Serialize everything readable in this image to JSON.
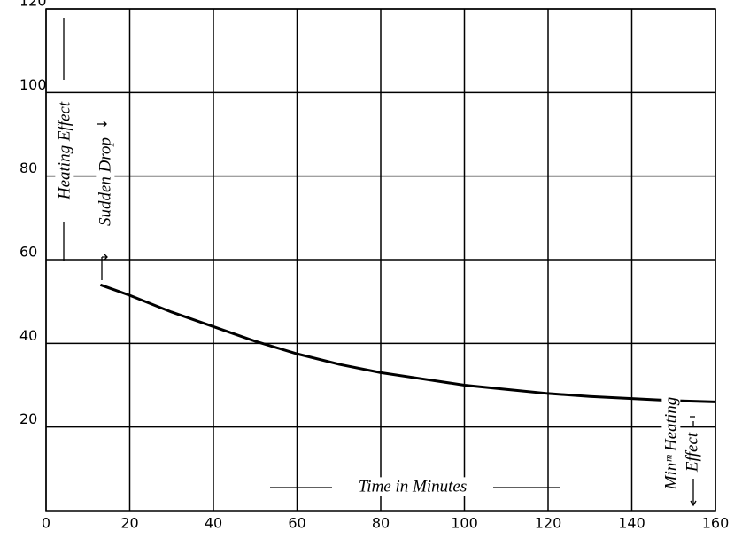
{
  "chart_data": {
    "type": "line",
    "x": [
      13,
      20,
      30,
      40,
      50,
      60,
      70,
      80,
      90,
      100,
      110,
      120,
      130,
      140,
      150,
      160
    ],
    "series": [
      {
        "color": "#000000",
        "values": [
          54,
          51.5,
          47.5,
          44,
          40.5,
          37.5,
          35,
          33,
          31.5,
          30,
          29,
          28,
          27.3,
          26.8,
          26.3,
          26
        ]
      }
    ],
    "xlim": [
      0,
      160
    ],
    "xticks": [
      0,
      20,
      40,
      60,
      80,
      100,
      120,
      140,
      160
    ],
    "ylim": [
      0,
      120
    ],
    "yticks": [
      20,
      40,
      60,
      80,
      100,
      120
    ],
    "grid": true,
    "annotations": [
      "Heating Effect",
      "Sudden Drop",
      "Time in Minutes",
      "Minᵐ Heating",
      "Effect"
    ]
  }
}
